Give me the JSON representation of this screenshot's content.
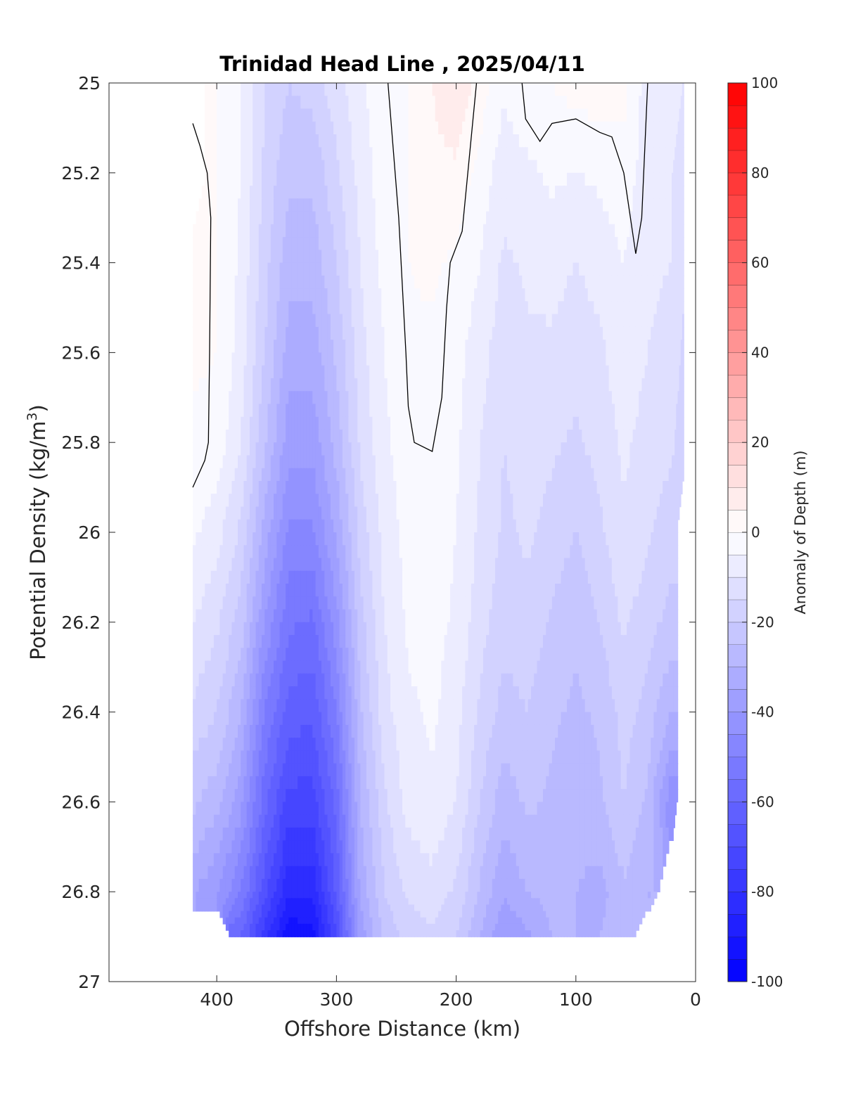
{
  "chart_data": {
    "type": "heatmap",
    "title": "Trinidad Head Line , 2025/04/11",
    "xlabel": "Offshore Distance (km)",
    "ylabel": "Potential Density (kg/m",
    "ylabel_sup": "3",
    "ylabel_end": ")",
    "colorbar_label": "Anomaly of Depth (m)",
    "xlim": [
      490,
      0
    ],
    "ylim": [
      25,
      27
    ],
    "x_ticks": [
      400,
      300,
      200,
      100,
      0
    ],
    "y_ticks": [
      25,
      25.2,
      25.4,
      25.6,
      25.8,
      26,
      26.2,
      26.4,
      26.6,
      26.8,
      27
    ],
    "y_tick_labels": [
      "25",
      "25.2",
      "25.4",
      "25.6",
      "25.8",
      "26",
      "26.2",
      "26.4",
      "26.6",
      "26.8",
      "27"
    ],
    "colorbar_range": [
      -100,
      100
    ],
    "colorbar_ticks": [
      -100,
      -80,
      -60,
      -40,
      -20,
      0,
      20,
      40,
      60,
      80,
      100
    ],
    "contour_interval": 5,
    "colormap": {
      "low": "#0000ff",
      "mid": "#ffffff",
      "high": "#ff0000"
    },
    "density_levels": [
      25.0,
      25.2,
      25.4,
      25.6,
      25.8,
      26.0,
      26.2,
      26.4,
      26.6,
      26.8,
      26.9
    ],
    "distance_stations": [
      420,
      400,
      380,
      360,
      340,
      320,
      300,
      280,
      260,
      240,
      220,
      200,
      180,
      160,
      140,
      120,
      100,
      80,
      60,
      40,
      20,
      10
    ],
    "values": [
      [
        null,
        0,
        -5,
        -15,
        -20,
        -18,
        -12,
        -6,
        -1,
        0,
        5,
        9,
        3,
        -4,
        -1,
        0,
        2,
        3,
        2,
        -8,
        -8,
        -10
      ],
      [
        null,
        0,
        -5,
        -16,
        -24,
        -24,
        -16,
        -8,
        -2,
        0,
        4,
        4,
        -2,
        -8,
        -6,
        -4,
        -5,
        -4,
        -2,
        -8,
        -10,
        -12
      ],
      [
        2,
        0,
        -6,
        -18,
        -28,
        -28,
        -20,
        -10,
        -3,
        0,
        1,
        -1,
        -5,
        -11,
        -9,
        -8,
        -10,
        -8,
        -5,
        -9,
        -10,
        -14
      ],
      [
        1,
        0,
        -7,
        -20,
        -32,
        -33,
        -24,
        -12,
        -5,
        -1,
        -1,
        -3,
        -8,
        -13,
        -11,
        -11,
        -13,
        -11,
        -7,
        -10,
        -12,
        -16
      ],
      [
        -1,
        -2,
        -10,
        -24,
        -38,
        -38,
        -28,
        -14,
        -6,
        -2,
        -1,
        -4,
        -10,
        -15,
        -13,
        -14,
        -16,
        -13,
        -9,
        -12,
        -14,
        -18
      ],
      [
        -4,
        -8,
        -16,
        -32,
        -46,
        -46,
        -34,
        -18,
        -8,
        -3,
        -2,
        -5,
        -11,
        -16,
        -14,
        -17,
        -20,
        -16,
        -11,
        -14,
        -18,
        null
      ],
      [
        -10,
        -14,
        -22,
        -40,
        -54,
        -56,
        -42,
        -22,
        -10,
        -4,
        -3,
        -6,
        -13,
        -18,
        -17,
        -21,
        -24,
        -20,
        -14,
        -18,
        -22,
        null
      ],
      [
        -16,
        -20,
        -30,
        -50,
        -62,
        -64,
        -50,
        -26,
        -12,
        -6,
        -4,
        -8,
        -16,
        -22,
        -20,
        -24,
        -26,
        -24,
        -18,
        -22,
        -30,
        null
      ],
      [
        -24,
        -28,
        -38,
        -58,
        -72,
        -72,
        -58,
        -30,
        -16,
        -8,
        -6,
        -10,
        -20,
        -28,
        -24,
        -26,
        -28,
        -26,
        -20,
        -26,
        -44,
        null
      ],
      [
        -34,
        -40,
        -50,
        -68,
        -84,
        -84,
        -64,
        -34,
        -20,
        -14,
        -12,
        -16,
        -26,
        -34,
        -30,
        -28,
        -30,
        -32,
        -26,
        -30,
        null,
        null
      ],
      [
        null,
        null,
        -60,
        -78,
        -94,
        -92,
        -70,
        -38,
        -24,
        -18,
        -16,
        -20,
        -30,
        -40,
        -36,
        -30,
        -30,
        -30,
        -26,
        null,
        null,
        null
      ]
    ]
  }
}
